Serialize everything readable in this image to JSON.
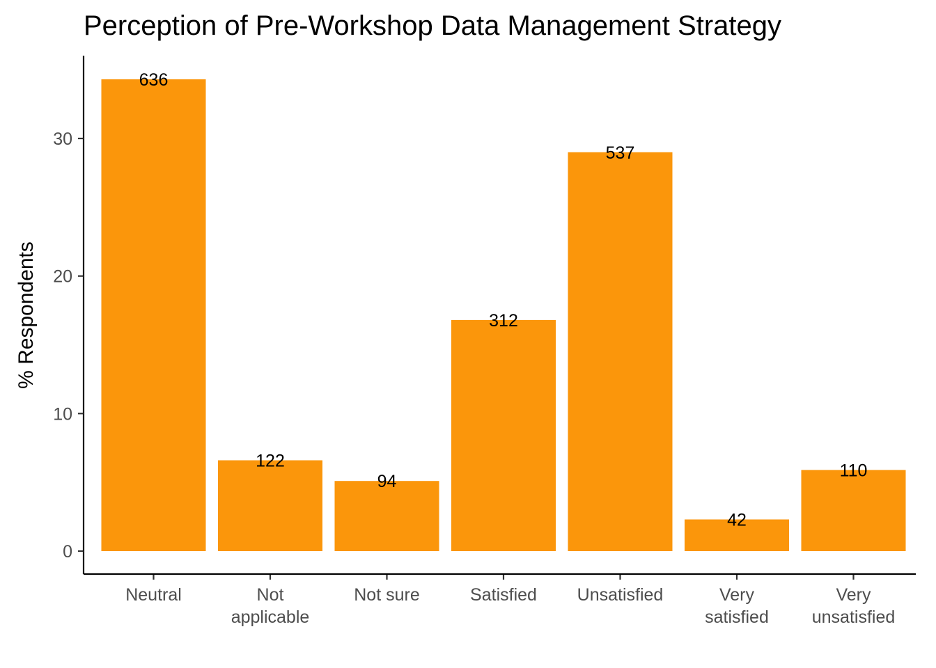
{
  "chart_data": {
    "type": "bar",
    "title": "Perception of Pre-Workshop Data Management Strategy",
    "xlabel": "",
    "ylabel": "% Respondents",
    "categories": [
      "Neutral",
      "Not applicable",
      "Not sure",
      "Satisfied",
      "Unsatisfied",
      "Very satisfied",
      "Very unsatisfied"
    ],
    "category_label_lines": [
      [
        "Neutral"
      ],
      [
        "Not",
        "applicable"
      ],
      [
        "Not sure"
      ],
      [
        "Satisfied"
      ],
      [
        "Unsatisfied"
      ],
      [
        "Very",
        "satisfied"
      ],
      [
        "Very",
        "unsatisfied"
      ]
    ],
    "values": [
      34.3,
      6.6,
      5.1,
      16.8,
      29.0,
      2.3,
      5.9
    ],
    "counts": [
      "636",
      "122",
      "94",
      "312",
      "537",
      "42",
      "110"
    ],
    "ylim": [
      0,
      35
    ],
    "yticks": [
      0,
      10,
      20,
      30
    ],
    "ytick_labels": [
      "0",
      "10",
      "20",
      "30"
    ],
    "bar_color": "#FB960B",
    "grid": false,
    "legend": "none"
  }
}
